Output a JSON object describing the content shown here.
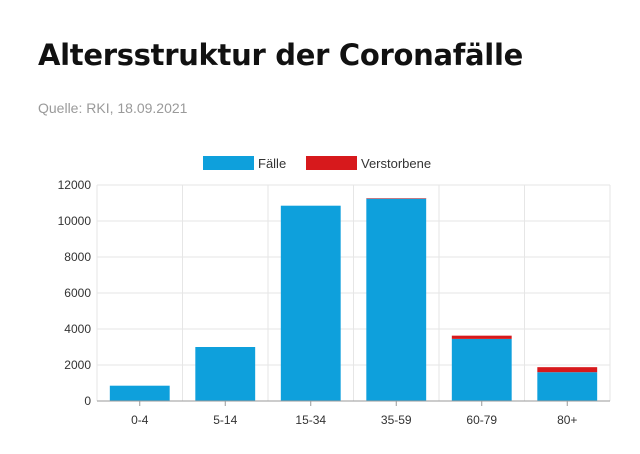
{
  "header": {
    "title": "Altersstruktur der Coronafälle",
    "source": "Quelle: RKI, 18.09.2021"
  },
  "colors": {
    "faelle": "#0ea0dc",
    "verstorbene": "#d7191c",
    "grid": "#e6e6e6",
    "axis": "#999999",
    "tick_text": "#333333"
  },
  "chart_data": {
    "type": "bar",
    "stacked": true,
    "categories": [
      "0-4",
      "5-14",
      "15-34",
      "35-59",
      "60-79",
      "80+"
    ],
    "series": [
      {
        "name": "Fälle",
        "values": [
          850,
          3000,
          10850,
          11250,
          3450,
          1600
        ]
      },
      {
        "name": "Verstorbene",
        "values": [
          0,
          0,
          0,
          10,
          180,
          280
        ]
      }
    ],
    "ylim": [
      0,
      12000
    ],
    "yticks": [
      0,
      2000,
      4000,
      6000,
      8000,
      10000,
      12000
    ],
    "xlabel": "",
    "ylabel": "",
    "grid": true,
    "legend": "top-center"
  }
}
